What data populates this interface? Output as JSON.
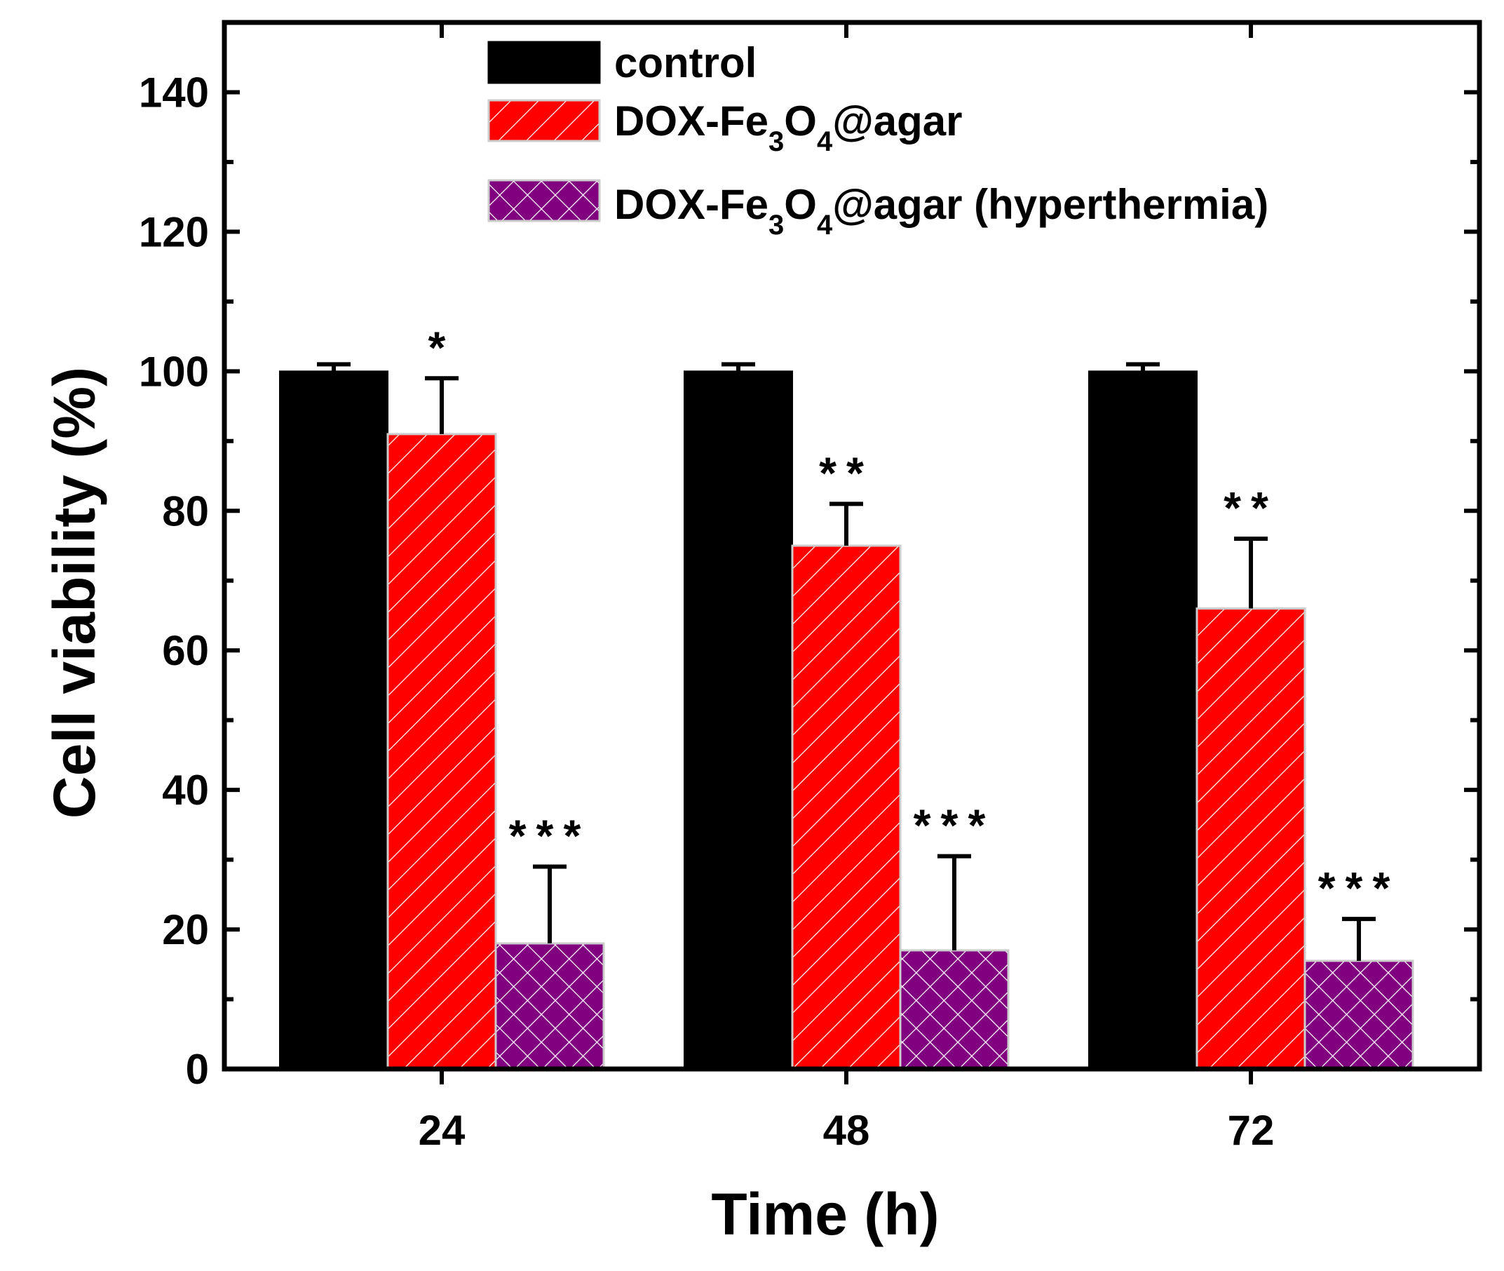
{
  "chart_data": {
    "type": "bar",
    "title": "",
    "xlabel": "Time (h)",
    "ylabel": "Cell viability (%)",
    "categories": [
      "24",
      "48",
      "72"
    ],
    "ylim": [
      0,
      150
    ],
    "yticks": [
      0,
      20,
      40,
      60,
      80,
      100,
      120,
      140
    ],
    "grid": false,
    "legend_position": "top",
    "series": [
      {
        "name": "control",
        "legend": {
          "pre": "control",
          "sub1": "",
          "mid": "",
          "sub2": "",
          "post": ""
        },
        "color": "#000000",
        "pattern": "solid",
        "values": [
          100,
          100,
          100
        ],
        "errors": [
          1,
          1,
          1
        ],
        "significance": [
          "",
          "",
          ""
        ]
      },
      {
        "name": "DOX-Fe3O4@agar",
        "legend": {
          "pre": "DOX-Fe",
          "sub1": "3",
          "mid": "O",
          "sub2": "4",
          "post": "@agar"
        },
        "color": "#ff0000",
        "pattern": "diagonal-hatch",
        "values": [
          91,
          75,
          66
        ],
        "errors": [
          8,
          6,
          10
        ],
        "significance": [
          "*",
          "**",
          "**"
        ]
      },
      {
        "name": "DOX-Fe3O4@agar (hyperthermia)",
        "legend": {
          "pre": "DOX-Fe",
          "sub1": "3",
          "mid": "O",
          "sub2": "4",
          "post": "@agar (hyperthermia)"
        },
        "color": "#800080",
        "pattern": "cross-hatch",
        "values": [
          18,
          17,
          15.5
        ],
        "errors": [
          11,
          13.5,
          6
        ],
        "significance": [
          "***",
          "***",
          "***"
        ]
      }
    ]
  }
}
